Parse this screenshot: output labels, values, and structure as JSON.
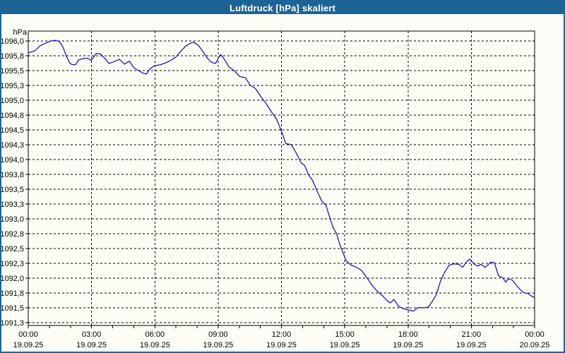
{
  "window": {
    "title": "Luftdruck [hPa] skaliert",
    "titlebar_color": "#1d6496",
    "background_color": "#fdfdf6"
  },
  "chart_data": {
    "type": "line",
    "title": "Luftdruck [hPa] skaliert",
    "ylabel": "hPa",
    "unit_label": "hPa",
    "line_color": "#1a1abe",
    "grid": "dashed-black",
    "legend_position": "none",
    "xlim_hours": [
      0,
      24
    ],
    "ylim": [
      1091.2,
      1096.167
    ],
    "minor_tick_every_hours": 1,
    "x_ticks": [
      {
        "hour": 0,
        "time": "00:00",
        "date": "19.09.25"
      },
      {
        "hour": 3,
        "time": "03:00",
        "date": "19.09.25"
      },
      {
        "hour": 6,
        "time": "06:00",
        "date": "19.09.25"
      },
      {
        "hour": 9,
        "time": "09:00",
        "date": "19.09.25"
      },
      {
        "hour": 12,
        "time": "12:00",
        "date": "19.09.25"
      },
      {
        "hour": 15,
        "time": "15:00",
        "date": "19.09.25"
      },
      {
        "hour": 18,
        "time": "18:00",
        "date": "19.09.25"
      },
      {
        "hour": 21,
        "time": "21:00",
        "date": "19.09.25"
      },
      {
        "hour": 24,
        "time": "00:00",
        "date": "20.09.25"
      }
    ],
    "y_ticks": [
      {
        "value": 1096.0,
        "label": "1096,0"
      },
      {
        "value": 1095.75,
        "label": "1095,8"
      },
      {
        "value": 1095.5,
        "label": "1095,5"
      },
      {
        "value": 1095.25,
        "label": "1095,3"
      },
      {
        "value": 1095.0,
        "label": "1095,0"
      },
      {
        "value": 1094.75,
        "label": "1094,8"
      },
      {
        "value": 1094.5,
        "label": "1094,5"
      },
      {
        "value": 1094.25,
        "label": "1094,3"
      },
      {
        "value": 1094.0,
        "label": "1094,0"
      },
      {
        "value": 1093.75,
        "label": "1093,8"
      },
      {
        "value": 1093.5,
        "label": "1093,5"
      },
      {
        "value": 1093.25,
        "label": "1093,3"
      },
      {
        "value": 1093.0,
        "label": "1093,0"
      },
      {
        "value": 1092.75,
        "label": "1092,8"
      },
      {
        "value": 1092.5,
        "label": "1092,5"
      },
      {
        "value": 1092.25,
        "label": "1092,3"
      },
      {
        "value": 1092.0,
        "label": "1092,0"
      },
      {
        "value": 1091.75,
        "label": "1091,8"
      },
      {
        "value": 1091.5,
        "label": "1091,5"
      },
      {
        "value": 1091.25,
        "label": "1091,3"
      }
    ],
    "series": [
      {
        "name": "Luftdruck [hPa]",
        "points_hour_value": [
          [
            0.0,
            1095.8
          ],
          [
            0.3,
            1095.83
          ],
          [
            0.57,
            1095.92
          ],
          [
            0.8,
            1095.96
          ],
          [
            1.07,
            1096.0
          ],
          [
            1.31,
            1096.01
          ],
          [
            1.48,
            1095.99
          ],
          [
            1.64,
            1095.9
          ],
          [
            1.81,
            1095.74
          ],
          [
            1.98,
            1095.62
          ],
          [
            2.1,
            1095.6
          ],
          [
            2.25,
            1095.6
          ],
          [
            2.38,
            1095.68
          ],
          [
            2.58,
            1095.7
          ],
          [
            2.82,
            1095.71
          ],
          [
            2.98,
            1095.67
          ],
          [
            3.22,
            1095.79
          ],
          [
            3.42,
            1095.78
          ],
          [
            3.65,
            1095.7
          ],
          [
            3.82,
            1095.62
          ],
          [
            4.0,
            1095.64
          ],
          [
            4.32,
            1095.69
          ],
          [
            4.56,
            1095.61
          ],
          [
            4.79,
            1095.66
          ],
          [
            5.0,
            1095.55
          ],
          [
            5.23,
            1095.5
          ],
          [
            5.43,
            1095.46
          ],
          [
            5.6,
            1095.44
          ],
          [
            5.77,
            1095.53
          ],
          [
            5.97,
            1095.58
          ],
          [
            6.27,
            1095.6
          ],
          [
            6.5,
            1095.63
          ],
          [
            6.74,
            1095.67
          ],
          [
            7.0,
            1095.73
          ],
          [
            7.24,
            1095.83
          ],
          [
            7.48,
            1095.92
          ],
          [
            7.68,
            1095.96
          ],
          [
            7.84,
            1095.98
          ],
          [
            8.08,
            1095.92
          ],
          [
            8.28,
            1095.82
          ],
          [
            8.51,
            1095.7
          ],
          [
            8.68,
            1095.64
          ],
          [
            8.88,
            1095.62
          ],
          [
            9.02,
            1095.72
          ],
          [
            9.12,
            1095.77
          ],
          [
            9.28,
            1095.7
          ],
          [
            9.52,
            1095.56
          ],
          [
            9.76,
            1095.5
          ],
          [
            10.02,
            1095.4
          ],
          [
            10.29,
            1095.38
          ],
          [
            10.53,
            1095.25
          ],
          [
            10.76,
            1095.2
          ],
          [
            11.03,
            1095.06
          ],
          [
            11.3,
            1094.93
          ],
          [
            11.53,
            1094.8
          ],
          [
            11.77,
            1094.68
          ],
          [
            12.03,
            1094.45
          ],
          [
            12.2,
            1094.27
          ],
          [
            12.47,
            1094.25
          ],
          [
            12.7,
            1094.11
          ],
          [
            12.94,
            1093.94
          ],
          [
            13.1,
            1093.9
          ],
          [
            13.27,
            1093.75
          ],
          [
            13.47,
            1093.65
          ],
          [
            13.71,
            1093.45
          ],
          [
            13.91,
            1093.3
          ],
          [
            14.11,
            1093.23
          ],
          [
            14.31,
            1093.0
          ],
          [
            14.45,
            1092.85
          ],
          [
            14.61,
            1092.75
          ],
          [
            14.78,
            1092.55
          ],
          [
            14.95,
            1092.4
          ],
          [
            15.05,
            1092.3
          ],
          [
            15.29,
            1092.22
          ],
          [
            15.56,
            1092.18
          ],
          [
            15.79,
            1092.13
          ],
          [
            16.06,
            1092.0
          ],
          [
            16.29,
            1091.88
          ],
          [
            16.56,
            1091.77
          ],
          [
            16.8,
            1091.7
          ],
          [
            17.0,
            1091.62
          ],
          [
            17.16,
            1091.58
          ],
          [
            17.33,
            1091.64
          ],
          [
            17.56,
            1091.52
          ],
          [
            17.8,
            1091.48
          ],
          [
            18.06,
            1091.46
          ],
          [
            18.24,
            1091.44
          ],
          [
            18.47,
            1091.5
          ],
          [
            18.74,
            1091.5
          ],
          [
            18.97,
            1091.51
          ],
          [
            19.14,
            1091.6
          ],
          [
            19.34,
            1091.72
          ],
          [
            19.54,
            1091.95
          ],
          [
            19.74,
            1092.1
          ],
          [
            19.95,
            1092.22
          ],
          [
            20.18,
            1092.24
          ],
          [
            20.42,
            1092.23
          ],
          [
            20.59,
            1092.18
          ],
          [
            20.76,
            1092.27
          ],
          [
            20.92,
            1092.32
          ],
          [
            21.12,
            1092.24
          ],
          [
            21.29,
            1092.2
          ],
          [
            21.46,
            1092.23
          ],
          [
            21.66,
            1092.18
          ],
          [
            21.93,
            1092.27
          ],
          [
            22.09,
            1092.26
          ],
          [
            22.29,
            1092.04
          ],
          [
            22.5,
            1092.0
          ],
          [
            22.63,
            1091.93
          ],
          [
            22.76,
            1091.99
          ],
          [
            22.96,
            1091.96
          ],
          [
            23.13,
            1091.88
          ],
          [
            23.33,
            1091.8
          ],
          [
            23.5,
            1091.75
          ],
          [
            23.69,
            1091.74
          ],
          [
            23.83,
            1091.7
          ],
          [
            24.0,
            1091.67
          ]
        ]
      }
    ]
  }
}
